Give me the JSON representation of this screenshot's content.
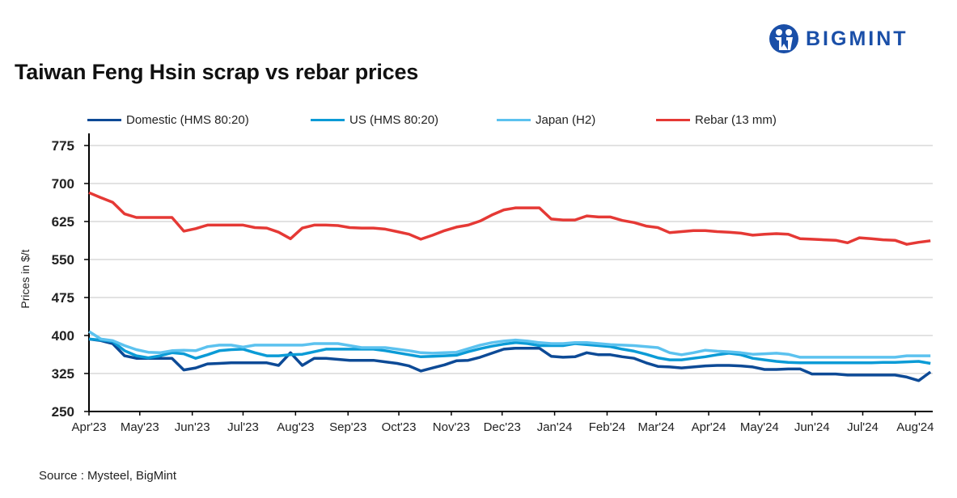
{
  "title": "Taiwan Feng Hsin scrap vs rebar prices",
  "logo": {
    "text": "BIGMINT",
    "color": "#1a4fa8"
  },
  "source": "Source : Mysteel, BigMint",
  "chart_data": {
    "type": "line",
    "title": "Taiwan Feng Hsin scrap vs rebar prices",
    "ylabel": "Prices in $/t",
    "xlabel": "",
    "ylim": [
      250,
      775
    ],
    "yticks": [
      250,
      325,
      400,
      475,
      550,
      625,
      700,
      775
    ],
    "xticks": [
      {
        "date": "2023-04-01",
        "label": "Apr'23"
      },
      {
        "date": "2023-05-01",
        "label": "May'23"
      },
      {
        "date": "2023-06-01",
        "label": "Jun'23"
      },
      {
        "date": "2023-07-01",
        "label": "Jul'23"
      },
      {
        "date": "2023-08-01",
        "label": "Aug'23"
      },
      {
        "date": "2023-09-01",
        "label": "Sep'23"
      },
      {
        "date": "2023-10-01",
        "label": "Oct'23"
      },
      {
        "date": "2023-11-01",
        "label": "Nov'23"
      },
      {
        "date": "2023-12-01",
        "label": "Dec'23"
      },
      {
        "date": "2024-01-01",
        "label": "Jan'24"
      },
      {
        "date": "2024-02-01",
        "label": "Feb'24"
      },
      {
        "date": "2024-03-01",
        "label": "Mar'24"
      },
      {
        "date": "2024-04-01",
        "label": "Apr'24"
      },
      {
        "date": "2024-05-01",
        "label": "May'24"
      },
      {
        "date": "2024-06-01",
        "label": "Jun'24"
      },
      {
        "date": "2024-07-01",
        "label": "Jul'24"
      },
      {
        "date": "2024-08-01",
        "label": "Aug'24"
      }
    ],
    "grid": true,
    "legend_position": "top",
    "x": [
      "2023-04-01",
      "2023-04-08",
      "2023-04-15",
      "2023-04-22",
      "2023-04-29",
      "2023-05-06",
      "2023-05-13",
      "2023-05-20",
      "2023-05-27",
      "2023-06-03",
      "2023-06-10",
      "2023-06-17",
      "2023-06-24",
      "2023-07-01",
      "2023-07-08",
      "2023-07-15",
      "2023-07-22",
      "2023-07-29",
      "2023-08-05",
      "2023-08-12",
      "2023-08-19",
      "2023-08-26",
      "2023-09-02",
      "2023-09-09",
      "2023-09-16",
      "2023-09-23",
      "2023-09-30",
      "2023-10-07",
      "2023-10-14",
      "2023-10-21",
      "2023-10-28",
      "2023-11-04",
      "2023-11-11",
      "2023-11-18",
      "2023-11-25",
      "2023-12-02",
      "2023-12-09",
      "2023-12-16",
      "2023-12-23",
      "2023-12-30",
      "2024-01-06",
      "2024-01-13",
      "2024-01-20",
      "2024-01-27",
      "2024-02-03",
      "2024-02-10",
      "2024-02-17",
      "2024-02-24",
      "2024-03-02",
      "2024-03-09",
      "2024-03-16",
      "2024-03-23",
      "2024-03-30",
      "2024-04-06",
      "2024-04-13",
      "2024-04-20",
      "2024-04-27",
      "2024-05-04",
      "2024-05-11",
      "2024-05-18",
      "2024-05-25",
      "2024-06-01",
      "2024-06-08",
      "2024-06-15",
      "2024-06-22",
      "2024-06-29",
      "2024-07-06",
      "2024-07-13",
      "2024-07-20",
      "2024-07-27",
      "2024-08-03",
      "2024-08-10"
    ],
    "series": [
      {
        "name": "Domestic (HMS 80:20)",
        "color": "#0d4a96",
        "values": [
          393,
          390,
          384,
          360,
          355,
          355,
          355,
          355,
          332,
          336,
          344,
          345,
          346,
          346,
          346,
          346,
          341,
          366,
          341,
          355,
          355,
          353,
          351,
          351,
          351,
          348,
          345,
          340,
          330,
          336,
          342,
          350,
          351,
          357,
          365,
          373,
          375,
          375,
          375,
          359,
          357,
          358,
          366,
          362,
          362,
          358,
          355,
          346,
          339,
          338,
          336,
          338,
          340,
          341,
          341,
          340,
          338,
          333,
          333,
          334,
          334,
          324,
          324,
          324,
          322,
          322,
          322,
          322,
          322,
          318,
          311,
          328
        ]
      },
      {
        "name": "US (HMS 80:20)",
        "color": "#0b9bd6",
        "values": [
          393,
          391,
          388,
          370,
          360,
          356,
          360,
          366,
          364,
          355,
          362,
          370,
          372,
          373,
          366,
          360,
          360,
          362,
          363,
          368,
          373,
          373,
          373,
          373,
          373,
          370,
          366,
          362,
          358,
          359,
          360,
          361,
          368,
          374,
          379,
          383,
          386,
          384,
          380,
          380,
          380,
          384,
          382,
          380,
          378,
          373,
          369,
          363,
          356,
          352,
          352,
          355,
          358,
          362,
          365,
          362,
          355,
          352,
          349,
          347,
          346,
          346,
          346,
          346,
          346,
          346,
          346,
          347,
          347,
          348,
          349,
          345
        ]
      },
      {
        "name": "Japan (H2)",
        "color": "#5cc2ef",
        "values": [
          408,
          393,
          390,
          380,
          372,
          367,
          366,
          370,
          371,
          370,
          378,
          381,
          381,
          377,
          381,
          381,
          381,
          381,
          381,
          384,
          384,
          384,
          380,
          376,
          376,
          376,
          373,
          370,
          366,
          365,
          366,
          367,
          374,
          381,
          386,
          389,
          391,
          389,
          386,
          384,
          384,
          386,
          386,
          384,
          382,
          381,
          380,
          378,
          376,
          366,
          362,
          366,
          371,
          369,
          368,
          366,
          363,
          364,
          365,
          363,
          357,
          357,
          357,
          357,
          357,
          357,
          357,
          357,
          357,
          360,
          360,
          360
        ]
      },
      {
        "name": "Rebar (13 mm)",
        "color": "#e53935",
        "values": [
          682,
          672,
          663,
          640,
          633,
          633,
          633,
          633,
          606,
          611,
          618,
          618,
          618,
          618,
          613,
          612,
          604,
          591,
          612,
          618,
          618,
          617,
          613,
          612,
          612,
          610,
          605,
          600,
          590,
          598,
          607,
          614,
          618,
          626,
          638,
          648,
          652,
          652,
          652,
          630,
          628,
          628,
          636,
          634,
          634,
          627,
          623,
          616,
          613,
          603,
          605,
          607,
          607,
          605,
          604,
          602,
          598,
          600,
          601,
          600,
          591,
          590,
          589,
          588,
          583,
          593,
          591,
          589,
          588,
          580,
          584,
          587
        ]
      }
    ]
  }
}
